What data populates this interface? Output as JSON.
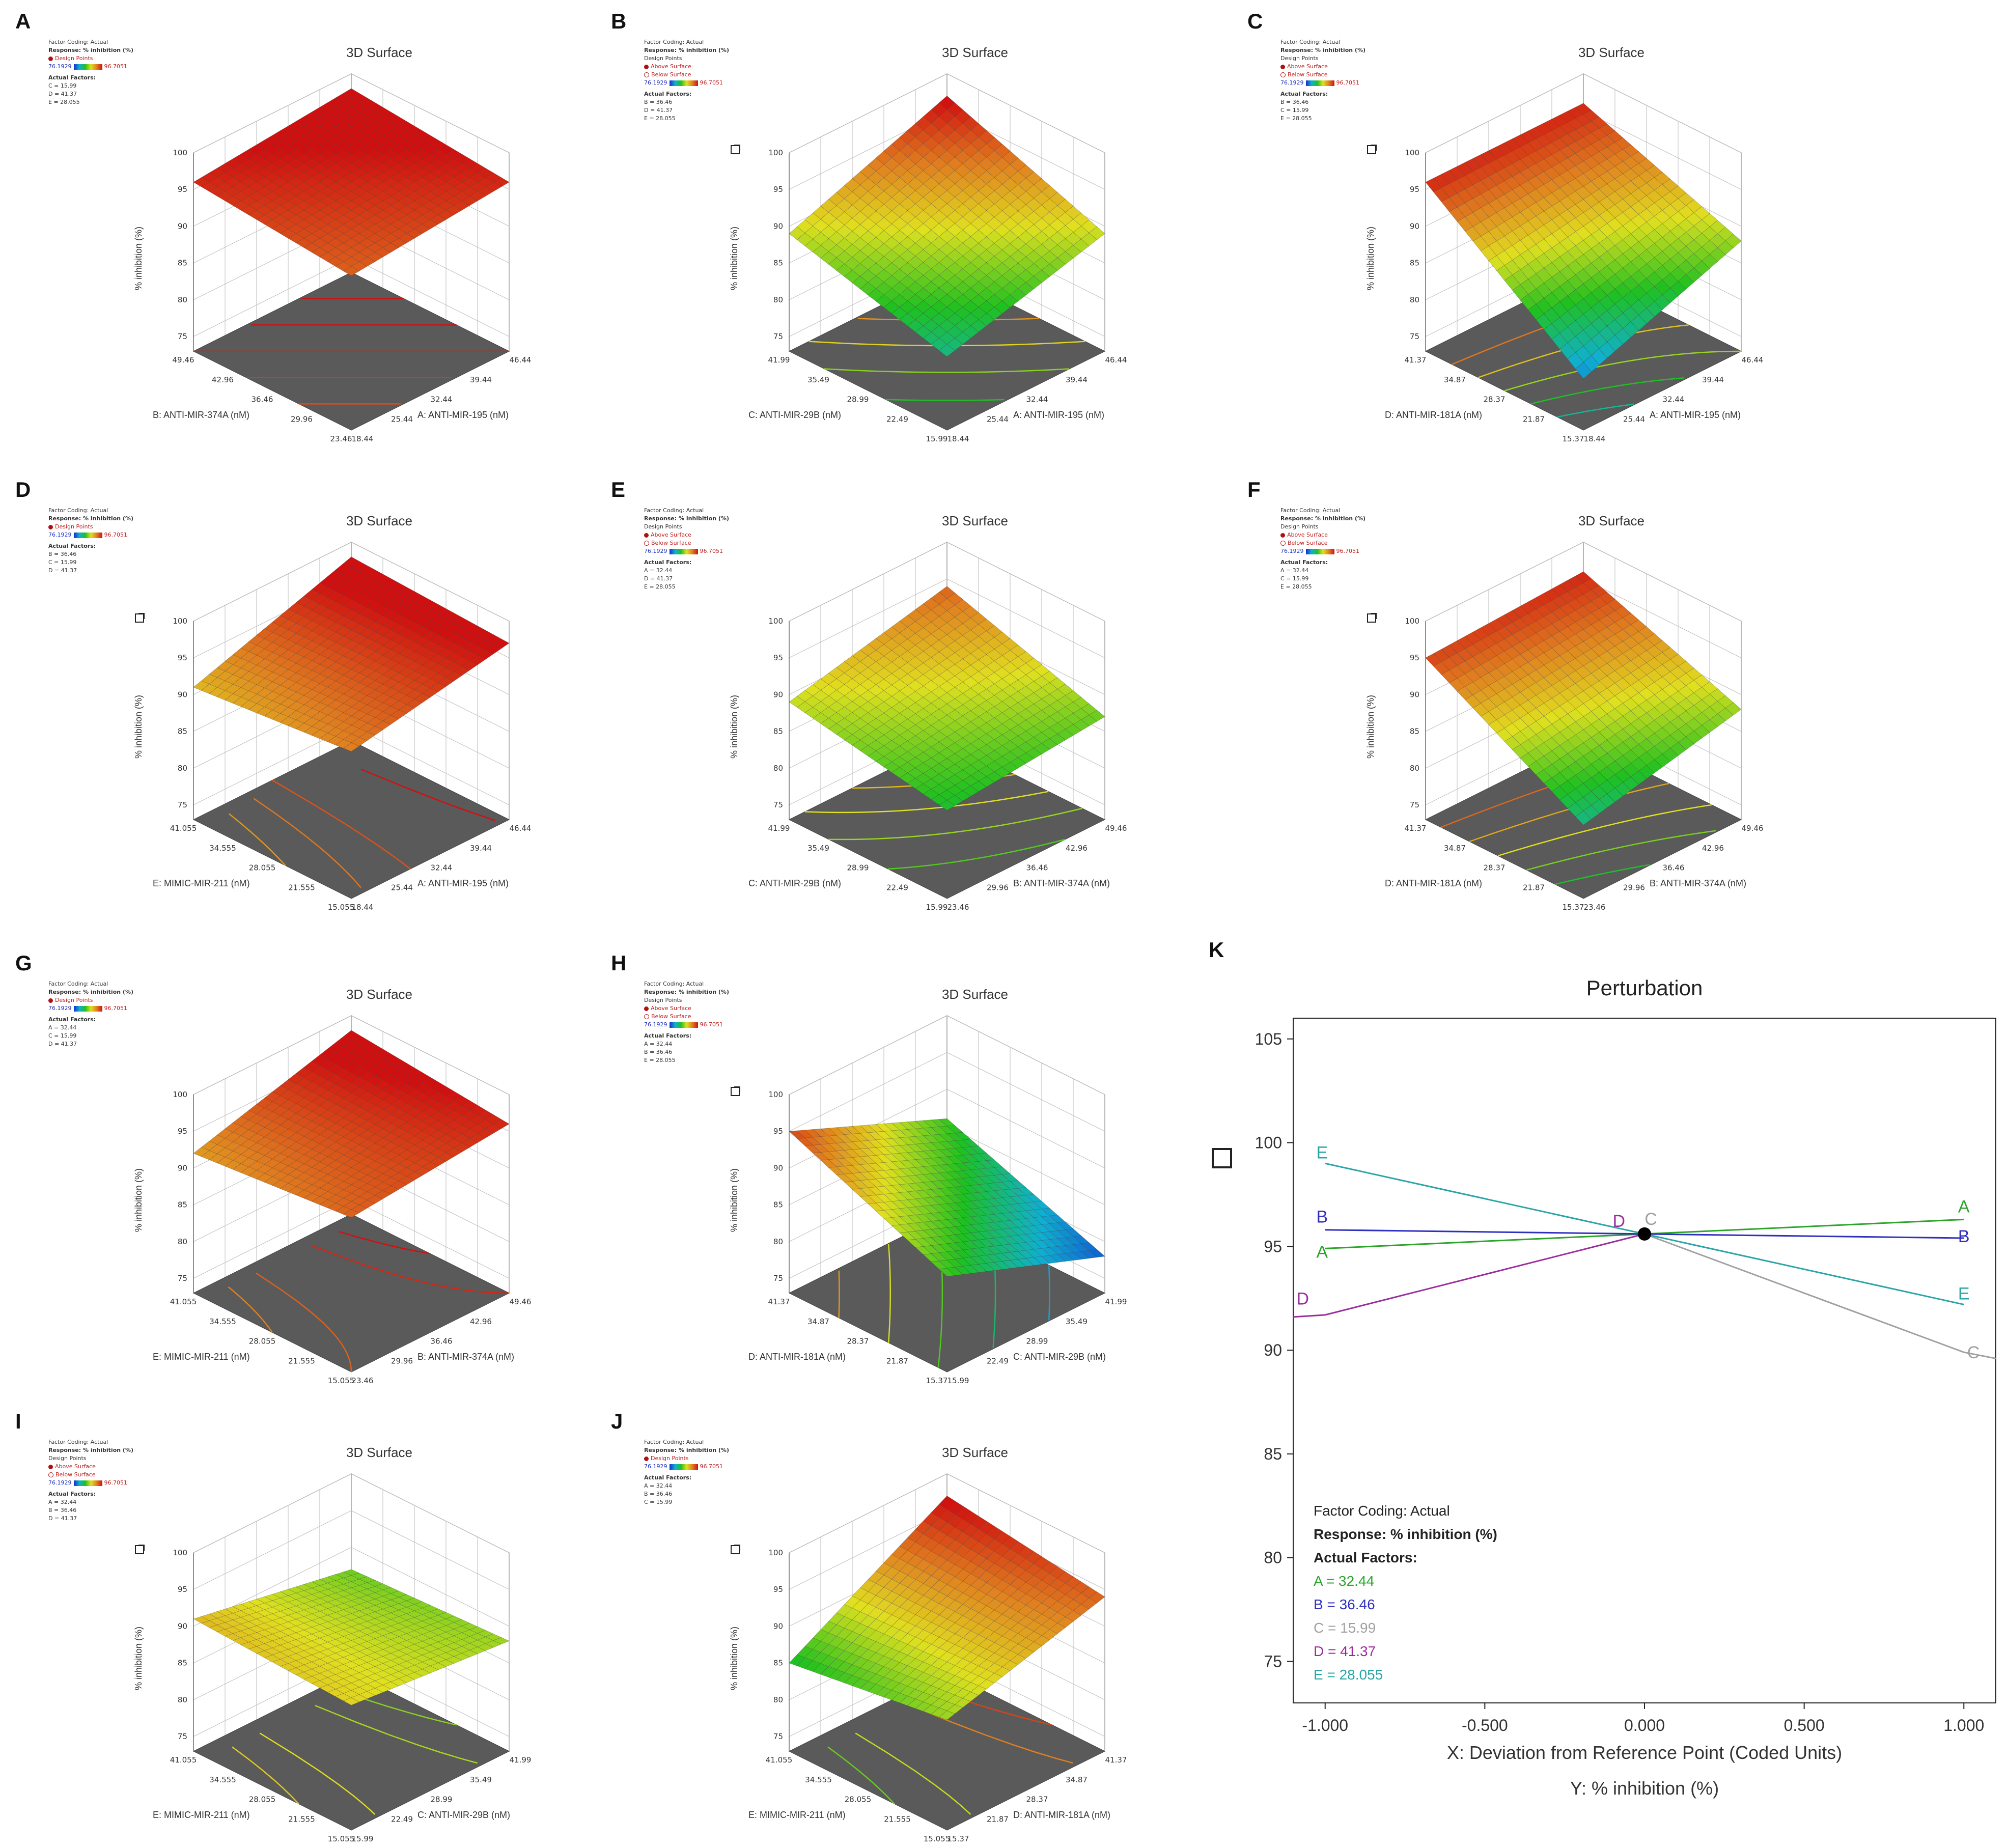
{
  "common": {
    "title": "3D Surface",
    "factor_coding": "Factor Coding: Actual",
    "response": "Response: % inhibition (%)",
    "design_points": "Design Points",
    "design_points_legend": "Design Points",
    "above_surface": "Above Surface",
    "below_surface": "Below Surface",
    "actual_factors": "Actual Factors:",
    "cb_min": "76.1929",
    "cb_max": "96.7051",
    "z_label": "% inhibition (%)",
    "z_ticks": [
      "75",
      "80",
      "85",
      "90",
      "95",
      "100"
    ]
  },
  "panels": [
    {
      "label": "A",
      "x_label": "A: ANTI-MIR-195 (nM)",
      "x_ticks": [
        "18.44",
        "25.44",
        "32.44",
        "39.44",
        "46.44"
      ],
      "y_label": "B: ANTI-MIR-374A (nM)",
      "y_ticks": [
        "23.46",
        "29.96",
        "36.46",
        "42.96",
        "49.46"
      ],
      "factors": [
        "C = 15.99",
        "D = 41.37",
        "E = 28.055"
      ],
      "legend_type": "design",
      "z_corners": [
        94,
        96,
        98,
        96
      ],
      "has_icon": false
    },
    {
      "label": "B",
      "x_label": "A: ANTI-MIR-195 (nM)",
      "x_ticks": [
        "18.44",
        "25.44",
        "32.44",
        "39.44",
        "46.44"
      ],
      "y_label": "C: ANTI-MIR-29B (nM)",
      "y_ticks": [
        "15.99",
        "22.49",
        "28.99",
        "35.49",
        "41.99"
      ],
      "factors": [
        "B = 36.46",
        "D = 41.37",
        "E = 28.055"
      ],
      "legend_type": "above",
      "z_corners": [
        83,
        89,
        97,
        89
      ],
      "has_icon": true
    },
    {
      "label": "C",
      "x_label": "A: ANTI-MIR-195 (nM)",
      "x_ticks": [
        "18.44",
        "25.44",
        "32.44",
        "39.44",
        "46.44"
      ],
      "y_label": "D: ANTI-MIR-181A (nM)",
      "y_ticks": [
        "15.37",
        "21.87",
        "28.37",
        "34.87",
        "41.37"
      ],
      "factors": [
        "B = 36.46",
        "C = 15.99",
        "E = 28.055"
      ],
      "legend_type": "above",
      "z_corners": [
        80,
        88,
        96,
        96
      ],
      "has_icon": true
    },
    {
      "label": "D",
      "x_label": "A: ANTI-MIR-195 (nM)",
      "x_ticks": [
        "18.44",
        "25.44",
        "32.44",
        "39.44",
        "46.44"
      ],
      "y_label": "E: MIMIC-MIR-211 (nM)",
      "y_ticks": [
        "15.055",
        "21.555",
        "28.055",
        "34.555",
        "41.055"
      ],
      "factors": [
        "B = 36.46",
        "C = 15.99",
        "D = 41.37"
      ],
      "legend_type": "design",
      "z_corners": [
        93,
        97,
        98,
        91
      ],
      "has_icon": true
    },
    {
      "label": "E",
      "x_label": "B: ANTI-MIR-374A (nM)",
      "x_ticks": [
        "23.46",
        "29.96",
        "36.46",
        "42.96",
        "49.46"
      ],
      "y_label": "C: ANTI-MIR-29B (nM)",
      "y_ticks": [
        "15.99",
        "22.49",
        "28.99",
        "35.49",
        "41.99"
      ],
      "factors": [
        "A = 32.44",
        "D = 41.37",
        "E = 28.055"
      ],
      "legend_type": "above",
      "z_corners": [
        85,
        87,
        94,
        89
      ],
      "has_icon": false
    },
    {
      "label": "F",
      "x_label": "B: ANTI-MIR-374A (nM)",
      "x_ticks": [
        "23.46",
        "29.96",
        "36.46",
        "42.96",
        "49.46"
      ],
      "y_label": "D: ANTI-MIR-181A (nM)",
      "y_ticks": [
        "15.37",
        "21.87",
        "28.37",
        "34.87",
        "41.37"
      ],
      "factors": [
        "A = 32.44",
        "C = 15.99",
        "E = 28.055"
      ],
      "legend_type": "above",
      "z_corners": [
        83,
        88,
        96,
        95
      ],
      "has_icon": true
    },
    {
      "label": "G",
      "x_label": "B: ANTI-MIR-374A (nM)",
      "x_ticks": [
        "23.46",
        "29.96",
        "36.46",
        "42.96",
        "49.46"
      ],
      "y_label": "E: MIMIC-MIR-211 (nM)",
      "y_ticks": [
        "15.055",
        "21.555",
        "28.055",
        "34.555",
        "41.055"
      ],
      "factors": [
        "A = 32.44",
        "C = 15.99",
        "D = 41.37"
      ],
      "legend_type": "design",
      "z_corners": [
        94,
        96,
        98,
        92
      ],
      "has_icon": false
    },
    {
      "label": "H",
      "x_label": "C: ANTI-MIR-29B (nM)",
      "x_ticks": [
        "15.99",
        "22.49",
        "28.99",
        "35.49",
        "41.99"
      ],
      "y_label": "D: ANTI-MIR-181A (nM)",
      "y_ticks": [
        "15.37",
        "21.87",
        "28.37",
        "34.87",
        "41.37"
      ],
      "factors": [
        "A = 32.44",
        "B = 36.46",
        "E = 28.055"
      ],
      "legend_type": "above",
      "z_corners": [
        86,
        78,
        86,
        95
      ],
      "has_icon": true
    },
    {
      "label": "I",
      "x_label": "C: ANTI-MIR-29B (nM)",
      "x_ticks": [
        "15.99",
        "22.49",
        "28.99",
        "35.49",
        "41.99"
      ],
      "y_label": "E: MIMIC-MIR-211 (nM)",
      "y_ticks": [
        "15.055",
        "21.555",
        "28.055",
        "34.555",
        "41.055"
      ],
      "factors": [
        "A = 32.44",
        "B = 36.46",
        "D = 41.37"
      ],
      "legend_type": "above",
      "z_corners": [
        90,
        88,
        87,
        91
      ],
      "has_icon": true
    },
    {
      "label": "J",
      "x_label": "D: ANTI-MIR-181A (nM)",
      "x_ticks": [
        "15.37",
        "21.87",
        "28.37",
        "34.87",
        "41.37"
      ],
      "y_label": "E: MIMIC-MIR-211 (nM)",
      "y_ticks": [
        "15.055",
        "21.555",
        "28.055",
        "34.555",
        "41.055"
      ],
      "factors": [
        "A = 32.44",
        "B = 36.46",
        "C = 15.99"
      ],
      "legend_type": "design",
      "z_corners": [
        88,
        94,
        97,
        85
      ],
      "has_icon": true
    }
  ],
  "perturbation": {
    "label": "K",
    "title": "Perturbation",
    "xlabel": "X: Deviation from Reference Point (Coded Units)",
    "ylabel": "Y: % inhibition (%)",
    "x_ticks": [
      "-1.000",
      "-0.500",
      "0.000",
      "0.500",
      "1.000"
    ],
    "y_ticks": [
      "75",
      "80",
      "85",
      "90",
      "95",
      "100",
      "105"
    ],
    "legend_title": "Factor Coding: Actual",
    "legend_response": "Response: % inhibition (%)",
    "legend_factors": "Actual Factors:",
    "legend_items": [
      "A = 32.44",
      "B = 36.46",
      "C = 15.99",
      "D = 41.37",
      "E = 28.055"
    ]
  },
  "chart_data": {
    "type": "line",
    "title": "Perturbation",
    "xlabel": "X: Deviation from Reference Point (Coded Units)",
    "ylabel": "Y: % inhibition (%)",
    "xlim": [
      -1.0,
      1.0
    ],
    "ylim": [
      73,
      106
    ],
    "x": [
      -1.0,
      0.0,
      1.0
    ],
    "series": [
      {
        "name": "A",
        "color": "#2aa52a",
        "values": [
          94.9,
          95.6,
          96.3
        ]
      },
      {
        "name": "B",
        "color": "#3030c0",
        "values": [
          95.8,
          95.6,
          95.4
        ]
      },
      {
        "name": "C",
        "color": "#a0a0a0",
        "values": [
          null,
          95.6,
          89.9
        ]
      },
      {
        "name": "D",
        "color": "#9c2c9c",
        "values": [
          91.7,
          95.6,
          null
        ]
      },
      {
        "name": "E",
        "color": "#2aa5a5",
        "values": [
          99.0,
          95.6,
          92.2
        ]
      }
    ]
  }
}
